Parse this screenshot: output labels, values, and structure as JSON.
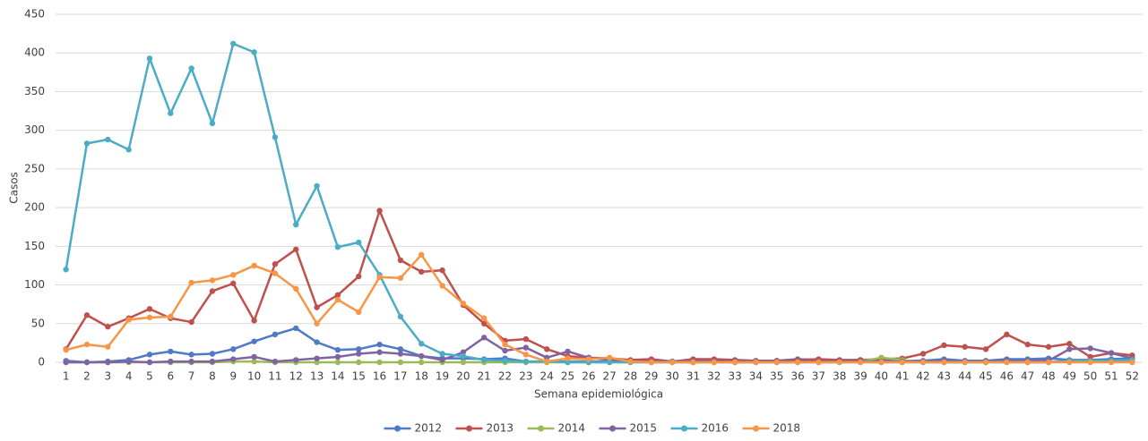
{
  "chart_data": {
    "type": "line",
    "y_label": "Casos",
    "x_label": "Semana epidemiológica",
    "categories": [
      "1",
      "2",
      "3",
      "4",
      "5",
      "6",
      "7",
      "8",
      "9",
      "10",
      "11",
      "12",
      "13",
      "14",
      "15",
      "16",
      "17",
      "18",
      "19",
      "20",
      "21",
      "22",
      "23",
      "24",
      "25",
      "26",
      "27",
      "28",
      "29",
      "30",
      "31",
      "32",
      "33",
      "34",
      "35",
      "36",
      "37",
      "38",
      "39",
      "40",
      "41",
      "42",
      "43",
      "44",
      "45",
      "46",
      "47",
      "48",
      "49",
      "50",
      "51",
      "52"
    ],
    "ylim": [
      0,
      450
    ],
    "yticks": [
      0,
      50,
      100,
      150,
      200,
      250,
      300,
      350,
      400,
      450
    ],
    "grid": true,
    "legend": "bottom",
    "series": [
      {
        "name": "2012",
        "color": "#4e7ac7",
        "values": [
          2,
          0,
          1,
          3,
          10,
          14,
          10,
          11,
          17,
          27,
          36,
          44,
          26,
          16,
          17,
          23,
          17,
          8,
          5,
          5,
          4,
          5,
          1,
          1,
          1,
          1,
          1,
          2,
          1,
          1,
          2,
          2,
          2,
          1,
          2,
          4,
          3,
          2,
          3,
          3,
          2,
          2,
          4,
          2,
          2,
          4,
          4,
          5,
          3,
          3,
          4,
          5
        ]
      },
      {
        "name": "2013",
        "color": "#c0504d",
        "values": [
          17,
          61,
          46,
          57,
          69,
          57,
          52,
          92,
          102,
          54,
          127,
          146,
          71,
          87,
          111,
          196,
          132,
          117,
          119,
          74,
          50,
          28,
          30,
          17,
          8,
          6,
          5,
          3,
          4,
          1,
          4,
          4,
          3,
          2,
          2,
          3,
          4,
          3,
          3,
          4,
          5,
          11,
          22,
          20,
          17,
          36,
          23,
          20,
          24,
          7,
          12,
          9
        ]
      },
      {
        "name": "2014",
        "color": "#9bbb59",
        "values": [
          0,
          0,
          0,
          0,
          0,
          0,
          0,
          0,
          1,
          1,
          0,
          0,
          0,
          0,
          0,
          0,
          0,
          0,
          0,
          0,
          0,
          0,
          0,
          0,
          0,
          0,
          0,
          0,
          0,
          0,
          0,
          0,
          0,
          0,
          0,
          0,
          0,
          0,
          1,
          6,
          3,
          0,
          0,
          0,
          0,
          1,
          0,
          0,
          1,
          1,
          1,
          1
        ]
      },
      {
        "name": "2015",
        "color": "#8064a2",
        "values": [
          0,
          0,
          0,
          1,
          0,
          1,
          1,
          1,
          4,
          7,
          1,
          3,
          5,
          7,
          11,
          13,
          11,
          8,
          3,
          13,
          32,
          15,
          19,
          6,
          14,
          6,
          3,
          1,
          1,
          1,
          1,
          1,
          1,
          1,
          1,
          1,
          1,
          1,
          1,
          1,
          1,
          1,
          2,
          1,
          1,
          2,
          2,
          2,
          17,
          18,
          12,
          5
        ]
      },
      {
        "name": "2016",
        "color": "#4bacc6",
        "values": [
          120,
          283,
          288,
          275,
          393,
          322,
          380,
          309,
          412,
          401,
          291,
          178,
          228,
          149,
          155,
          113,
          59,
          24,
          11,
          8,
          3,
          2,
          1,
          1,
          0,
          0,
          0,
          0,
          0,
          0,
          0,
          0,
          0,
          0,
          0,
          0,
          0,
          0,
          0,
          0,
          0,
          0,
          0,
          0,
          0,
          0,
          0,
          0,
          2,
          2,
          2,
          3
        ]
      },
      {
        "name": "2018",
        "color": "#f79646",
        "values": [
          16,
          23,
          20,
          55,
          58,
          59,
          103,
          106,
          113,
          125,
          115,
          95,
          50,
          81,
          65,
          110,
          109,
          139,
          99,
          76,
          57,
          23,
          10,
          1,
          5,
          4,
          6,
          1,
          0,
          0,
          0,
          0,
          0,
          0,
          0,
          0,
          0,
          0,
          0,
          0,
          0,
          0,
          0,
          0,
          0,
          0,
          0,
          0,
          0,
          0,
          0,
          0
        ]
      }
    ]
  }
}
